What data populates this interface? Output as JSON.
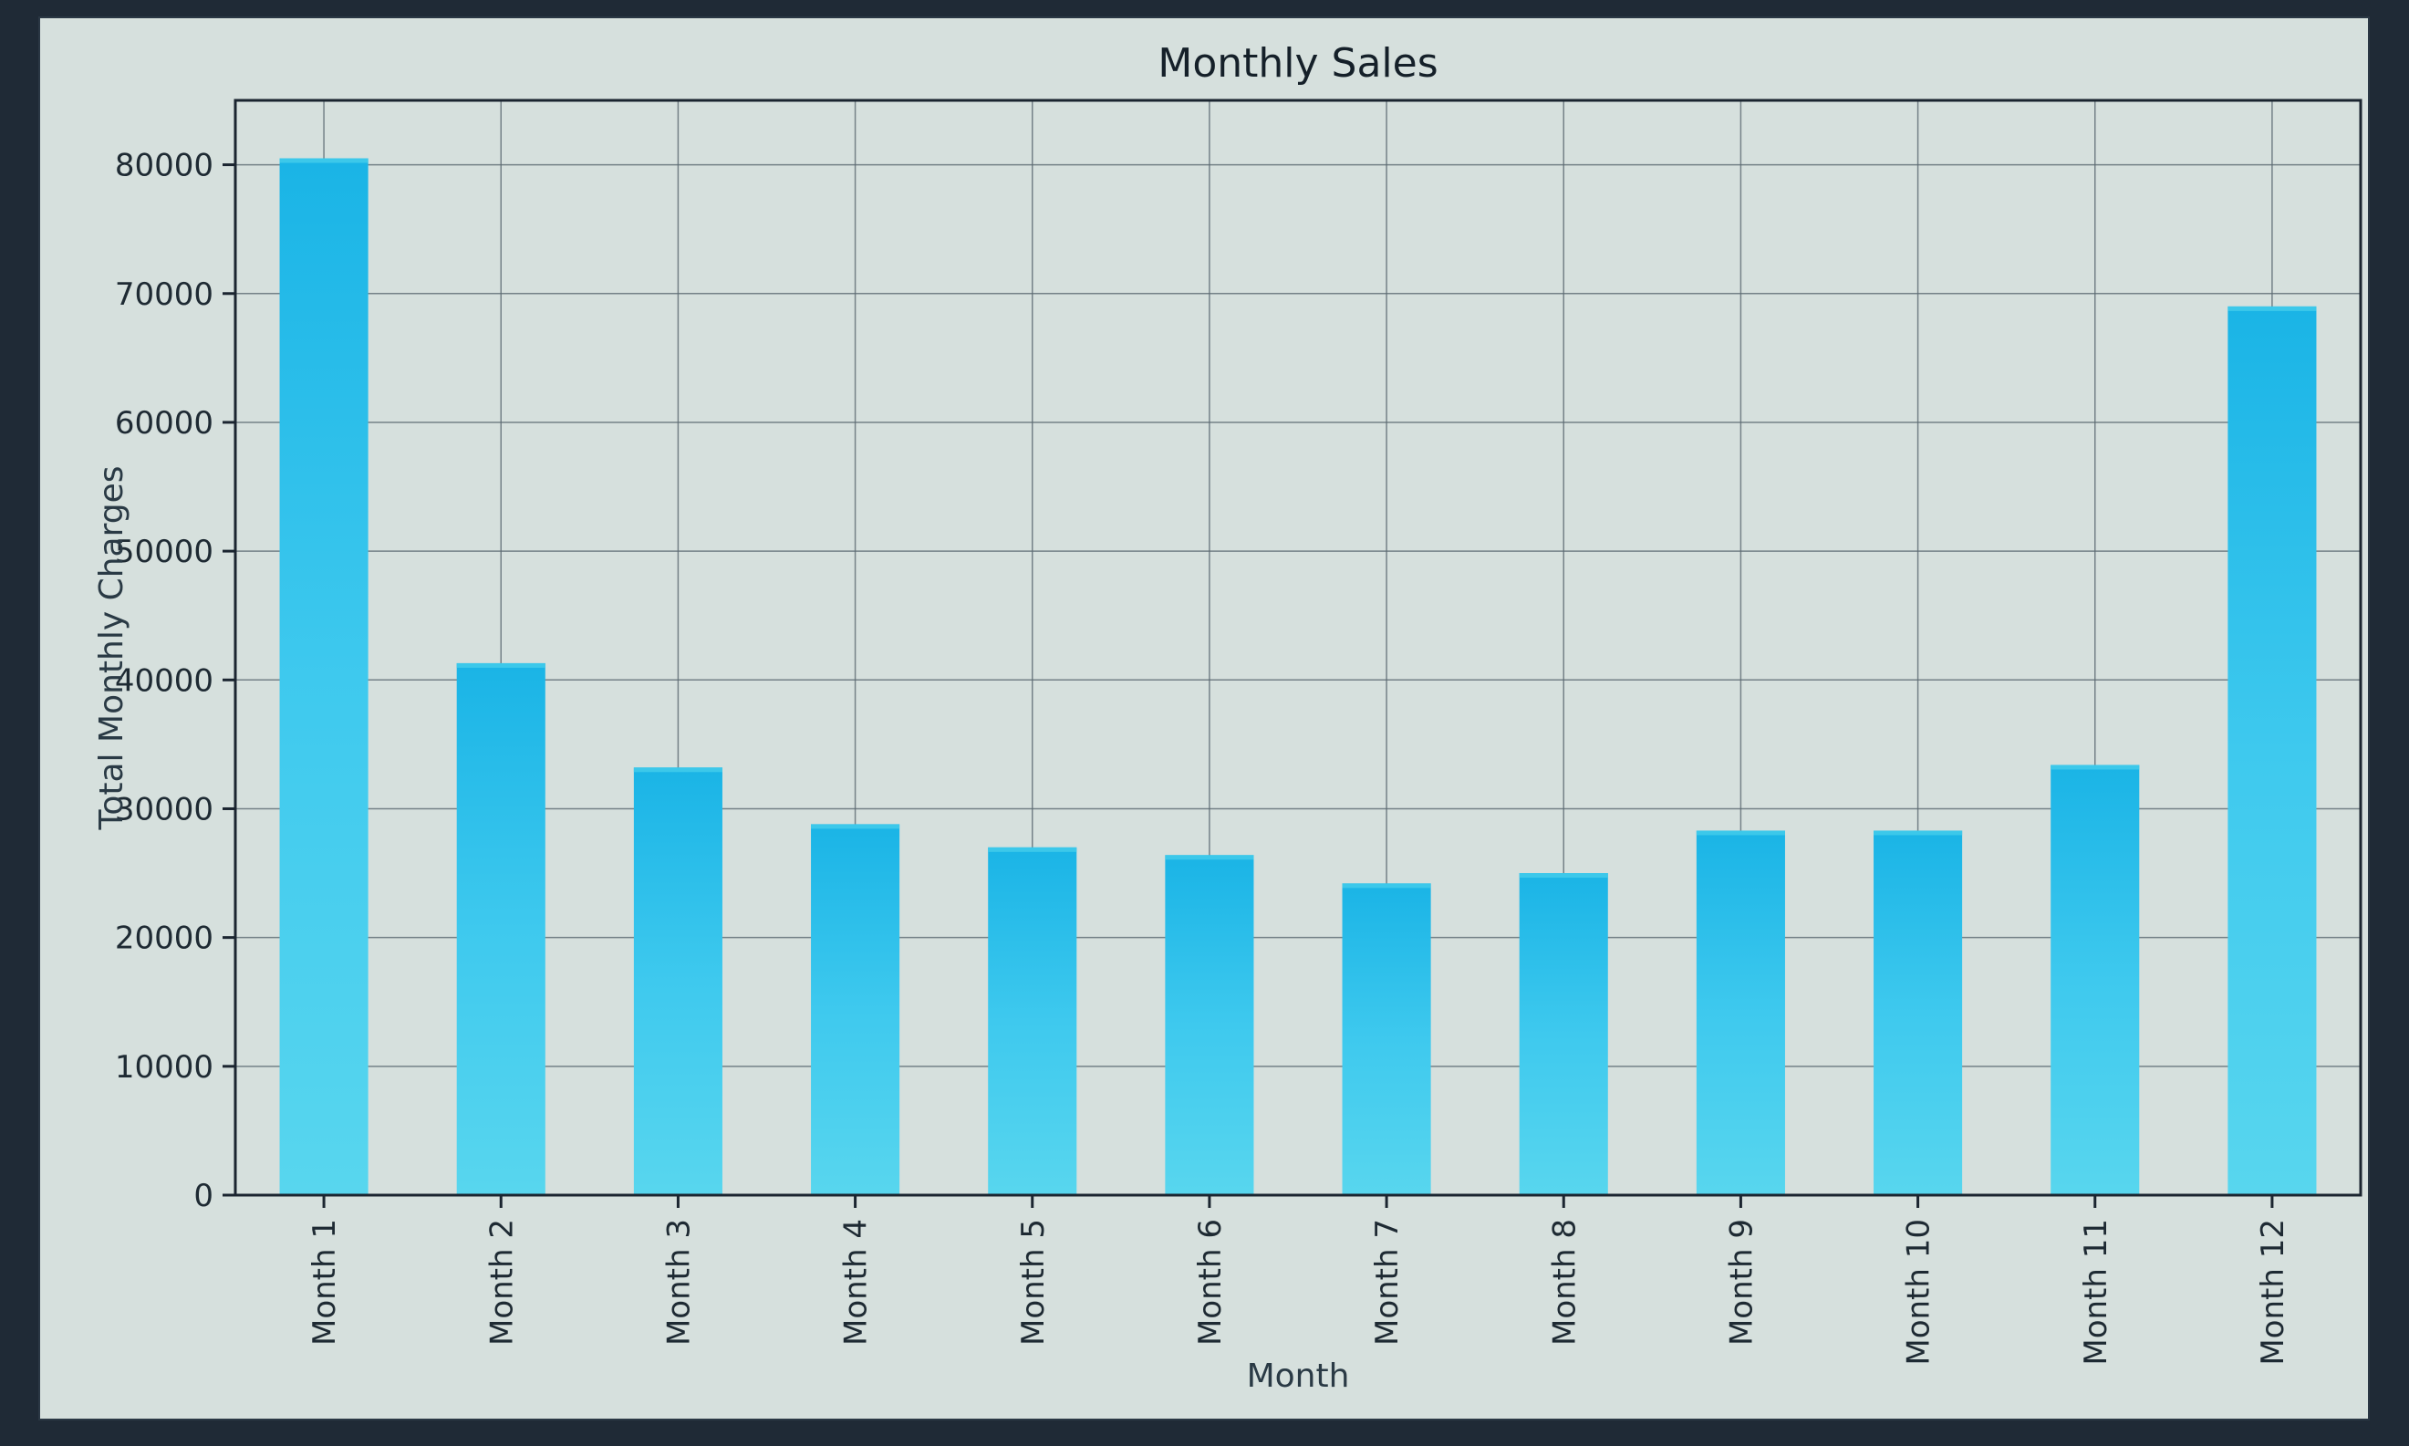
{
  "chart_data": {
    "type": "bar",
    "title": "Monthly Sales",
    "xlabel": "Month",
    "ylabel": "Total Monthly Charges",
    "categories": [
      "Month 1",
      "Month 2",
      "Month 3",
      "Month 4",
      "Month 5",
      "Month 6",
      "Month 7",
      "Month 8",
      "Month 9",
      "Month 10",
      "Month 11",
      "Month 12"
    ],
    "values": [
      80500,
      41300,
      33200,
      28800,
      27000,
      26400,
      24200,
      25000,
      28300,
      28300,
      33400,
      69000
    ],
    "yticks": [
      0,
      10000,
      20000,
      30000,
      40000,
      50000,
      60000,
      70000,
      80000
    ],
    "ylim": [
      0,
      85000
    ],
    "grid": true,
    "bar_color": "#3cc8ea",
    "grid_color": "#5c6a72",
    "axis_color": "#1b2530"
  }
}
